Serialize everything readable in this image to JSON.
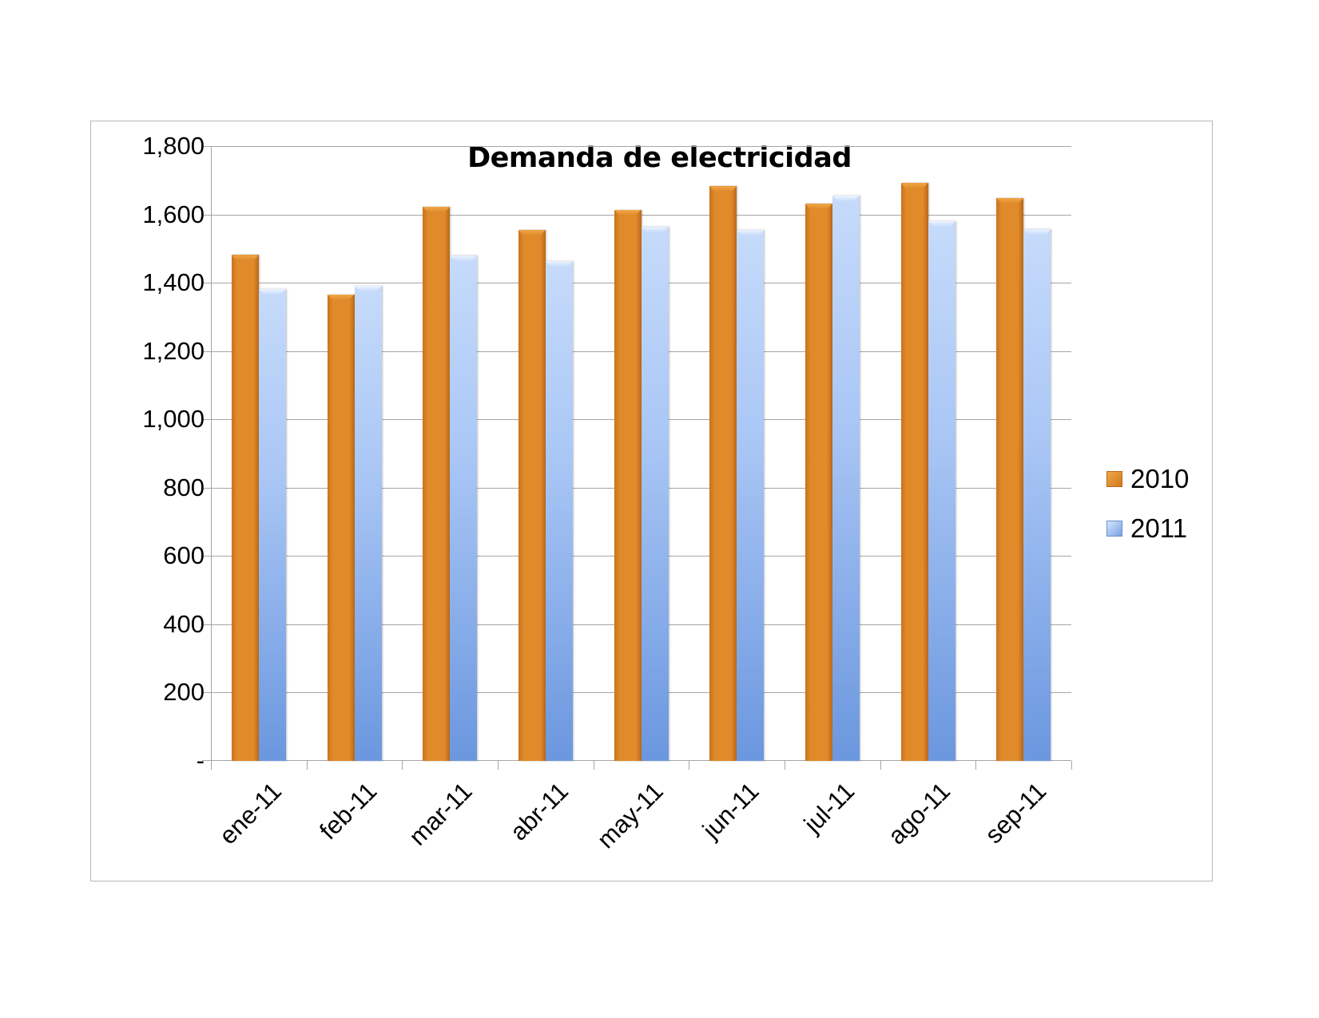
{
  "chart_data": {
    "type": "bar",
    "title": "Demanda de electricidad",
    "xlabel": "",
    "ylabel": "",
    "categories": [
      "ene-11",
      "feb-11",
      "mar-11",
      "abr-11",
      "may-11",
      "jun-11",
      "jul-11",
      "ago-11",
      "sep-11"
    ],
    "series": [
      {
        "name": "2010",
        "color": "#e08a2a",
        "values": [
          1481,
          1366,
          1622,
          1554,
          1614,
          1682,
          1631,
          1692,
          1648
        ]
      },
      {
        "name": "2011",
        "color": "#8fb3ee",
        "values": [
          1382,
          1391,
          1479,
          1463,
          1563,
          1554,
          1656,
          1581,
          1556
        ]
      }
    ],
    "ylim": [
      0,
      1800
    ],
    "yticks": [
      0,
      200,
      400,
      600,
      800,
      1000,
      1200,
      1400,
      1600,
      1800
    ],
    "ytick_labels": [
      "-",
      "200",
      "400",
      "600",
      "800",
      "1,000",
      "1,200",
      "1,400",
      "1,600",
      "1,800"
    ],
    "grid": true,
    "legend_position": "right"
  }
}
